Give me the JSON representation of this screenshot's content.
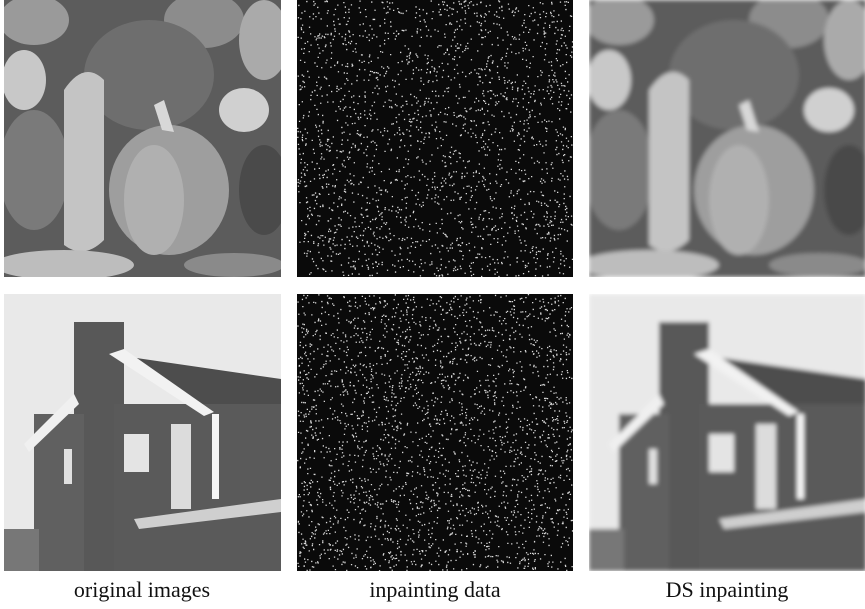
{
  "captions": [
    "original images",
    "inpainting data",
    "DS inpainting"
  ]
}
